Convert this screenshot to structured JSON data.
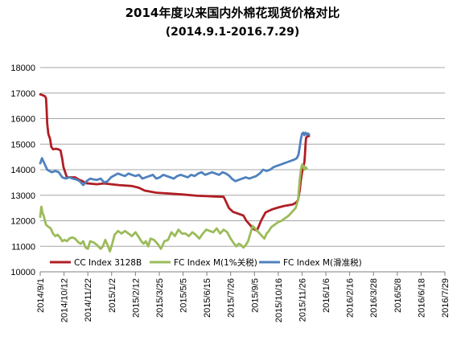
{
  "chart_data": {
    "type": "line",
    "title": "2014年度以来国内外棉花现货价格对比",
    "subtitle": "(2014.9.1-2016.7.29)",
    "xlabel": "",
    "ylabel": "",
    "ylim": [
      10000,
      18000
    ],
    "ytick_step": 1000,
    "ytick_labels": [
      "10000",
      "11000",
      "12000",
      "13000",
      "14000",
      "15000",
      "16000",
      "17000",
      "18000"
    ],
    "x_tick_labels": [
      "2014/9/1",
      "2014/10/12",
      "2014/11/22",
      "2015/1/2",
      "2015/2/12",
      "2015/3/25",
      "2015/5/5",
      "2015/6/15",
      "2015/7/26",
      "2015/9/5",
      "2015/10/16",
      "2015/11/26",
      "2016/1/6",
      "2016/2/16",
      "2016/3/28",
      "2016/5/8",
      "2016/6/18",
      "2016/7/29"
    ],
    "grid": "horizontal",
    "legend_position": "bottom",
    "series": [
      {
        "name": "CC Index 3128B",
        "color": "#B01E23",
        "points": [
          [
            0,
            16950
          ],
          [
            4,
            16920
          ],
          [
            8,
            16880
          ],
          [
            10,
            16800
          ],
          [
            11,
            16400
          ],
          [
            12,
            15800
          ],
          [
            14,
            15400
          ],
          [
            17,
            15200
          ],
          [
            19,
            14900
          ],
          [
            22,
            14800
          ],
          [
            27,
            14820
          ],
          [
            32,
            14790
          ],
          [
            35,
            14750
          ],
          [
            38,
            14420
          ],
          [
            40,
            14100
          ],
          [
            43,
            13900
          ],
          [
            46,
            13700
          ],
          [
            60,
            13700
          ],
          [
            66,
            13620
          ],
          [
            73,
            13550
          ],
          [
            79,
            13470
          ],
          [
            97,
            13430
          ],
          [
            110,
            13460
          ],
          [
            135,
            13400
          ],
          [
            158,
            13360
          ],
          [
            170,
            13290
          ],
          [
            180,
            13180
          ],
          [
            200,
            13100
          ],
          [
            225,
            13060
          ],
          [
            245,
            13030
          ],
          [
            270,
            12980
          ],
          [
            300,
            12950
          ],
          [
            316,
            12940
          ],
          [
            320,
            12750
          ],
          [
            325,
            12500
          ],
          [
            332,
            12350
          ],
          [
            342,
            12270
          ],
          [
            350,
            12200
          ],
          [
            355,
            12000
          ],
          [
            362,
            11820
          ],
          [
            367,
            11680
          ],
          [
            373,
            11620
          ],
          [
            376,
            11750
          ],
          [
            380,
            11980
          ],
          [
            384,
            12150
          ],
          [
            388,
            12320
          ],
          [
            395,
            12400
          ],
          [
            400,
            12450
          ],
          [
            410,
            12520
          ],
          [
            420,
            12580
          ],
          [
            428,
            12610
          ],
          [
            435,
            12640
          ],
          [
            440,
            12700
          ],
          [
            444,
            12800
          ],
          [
            447,
            13200
          ],
          [
            449,
            13600
          ],
          [
            451,
            13900
          ],
          [
            453,
            14100
          ],
          [
            455,
            14300
          ],
          [
            456,
            14600
          ],
          [
            457,
            15000
          ],
          [
            458,
            15250
          ],
          [
            460,
            15300
          ],
          [
            463,
            15320
          ]
        ]
      },
      {
        "name": "FC Index M(1%关税)",
        "color": "#9BBB59",
        "points": [
          [
            0,
            12150
          ],
          [
            2,
            12550
          ],
          [
            4,
            12300
          ],
          [
            6,
            12200
          ],
          [
            8,
            12000
          ],
          [
            10,
            11850
          ],
          [
            12,
            11800
          ],
          [
            15,
            11750
          ],
          [
            18,
            11700
          ],
          [
            22,
            11500
          ],
          [
            26,
            11400
          ],
          [
            30,
            11450
          ],
          [
            34,
            11350
          ],
          [
            38,
            11200
          ],
          [
            42,
            11250
          ],
          [
            46,
            11200
          ],
          [
            50,
            11300
          ],
          [
            55,
            11350
          ],
          [
            60,
            11300
          ],
          [
            66,
            11150
          ],
          [
            70,
            11100
          ],
          [
            74,
            11200
          ],
          [
            78,
            10950
          ],
          [
            82,
            10900
          ],
          [
            86,
            11200
          ],
          [
            92,
            11150
          ],
          [
            98,
            11050
          ],
          [
            104,
            10900
          ],
          [
            108,
            11000
          ],
          [
            112,
            11250
          ],
          [
            116,
            11050
          ],
          [
            120,
            10800
          ],
          [
            124,
            11100
          ],
          [
            128,
            11450
          ],
          [
            134,
            11600
          ],
          [
            140,
            11500
          ],
          [
            146,
            11600
          ],
          [
            152,
            11500
          ],
          [
            158,
            11400
          ],
          [
            164,
            11550
          ],
          [
            170,
            11350
          ],
          [
            174,
            11200
          ],
          [
            178,
            11100
          ],
          [
            182,
            11200
          ],
          [
            186,
            11000
          ],
          [
            190,
            11300
          ],
          [
            196,
            11250
          ],
          [
            202,
            11100
          ],
          [
            208,
            10900
          ],
          [
            214,
            11200
          ],
          [
            220,
            11250
          ],
          [
            226,
            11550
          ],
          [
            232,
            11400
          ],
          [
            238,
            11650
          ],
          [
            244,
            11500
          ],
          [
            250,
            11500
          ],
          [
            256,
            11400
          ],
          [
            262,
            11550
          ],
          [
            268,
            11450
          ],
          [
            274,
            11300
          ],
          [
            280,
            11500
          ],
          [
            286,
            11650
          ],
          [
            292,
            11600
          ],
          [
            298,
            11550
          ],
          [
            304,
            11700
          ],
          [
            310,
            11500
          ],
          [
            316,
            11650
          ],
          [
            322,
            11550
          ],
          [
            328,
            11300
          ],
          [
            334,
            11100
          ],
          [
            338,
            11000
          ],
          [
            342,
            11100
          ],
          [
            346,
            11050
          ],
          [
            350,
            10950
          ],
          [
            354,
            11050
          ],
          [
            358,
            11200
          ],
          [
            362,
            11500
          ],
          [
            366,
            11800
          ],
          [
            370,
            11700
          ],
          [
            374,
            11600
          ],
          [
            378,
            11500
          ],
          [
            382,
            11400
          ],
          [
            386,
            11300
          ],
          [
            390,
            11500
          ],
          [
            394,
            11600
          ],
          [
            398,
            11750
          ],
          [
            404,
            11850
          ],
          [
            410,
            11950
          ],
          [
            416,
            12000
          ],
          [
            422,
            12100
          ],
          [
            428,
            12200
          ],
          [
            434,
            12350
          ],
          [
            440,
            12500
          ],
          [
            444,
            12800
          ],
          [
            447,
            13600
          ],
          [
            449,
            14000
          ],
          [
            451,
            14200
          ],
          [
            453,
            14150
          ],
          [
            455,
            14000
          ],
          [
            457,
            14100
          ],
          [
            459,
            14050
          ]
        ]
      },
      {
        "name": "FC Index M(滑准税)",
        "color": "#4F81BD",
        "points": [
          [
            0,
            14250
          ],
          [
            3,
            14450
          ],
          [
            6,
            14300
          ],
          [
            9,
            14150
          ],
          [
            12,
            14000
          ],
          [
            16,
            13950
          ],
          [
            20,
            13900
          ],
          [
            26,
            13950
          ],
          [
            32,
            13900
          ],
          [
            38,
            13700
          ],
          [
            44,
            13650
          ],
          [
            50,
            13700
          ],
          [
            56,
            13650
          ],
          [
            62,
            13620
          ],
          [
            68,
            13550
          ],
          [
            74,
            13400
          ],
          [
            80,
            13550
          ],
          [
            86,
            13650
          ],
          [
            92,
            13620
          ],
          [
            98,
            13600
          ],
          [
            104,
            13650
          ],
          [
            110,
            13500
          ],
          [
            116,
            13550
          ],
          [
            122,
            13700
          ],
          [
            128,
            13780
          ],
          [
            134,
            13850
          ],
          [
            140,
            13800
          ],
          [
            146,
            13750
          ],
          [
            152,
            13850
          ],
          [
            158,
            13800
          ],
          [
            164,
            13750
          ],
          [
            170,
            13800
          ],
          [
            176,
            13650
          ],
          [
            182,
            13700
          ],
          [
            188,
            13750
          ],
          [
            194,
            13800
          ],
          [
            200,
            13650
          ],
          [
            206,
            13700
          ],
          [
            212,
            13800
          ],
          [
            218,
            13750
          ],
          [
            224,
            13700
          ],
          [
            230,
            13650
          ],
          [
            236,
            13750
          ],
          [
            242,
            13800
          ],
          [
            248,
            13750
          ],
          [
            254,
            13700
          ],
          [
            260,
            13800
          ],
          [
            266,
            13750
          ],
          [
            272,
            13850
          ],
          [
            278,
            13900
          ],
          [
            284,
            13800
          ],
          [
            290,
            13850
          ],
          [
            296,
            13900
          ],
          [
            302,
            13850
          ],
          [
            308,
            13800
          ],
          [
            314,
            13900
          ],
          [
            320,
            13850
          ],
          [
            326,
            13750
          ],
          [
            330,
            13650
          ],
          [
            336,
            13550
          ],
          [
            342,
            13600
          ],
          [
            348,
            13650
          ],
          [
            354,
            13700
          ],
          [
            360,
            13650
          ],
          [
            366,
            13700
          ],
          [
            372,
            13750
          ],
          [
            378,
            13850
          ],
          [
            384,
            14000
          ],
          [
            390,
            13950
          ],
          [
            396,
            14000
          ],
          [
            402,
            14100
          ],
          [
            408,
            14150
          ],
          [
            414,
            14200
          ],
          [
            420,
            14250
          ],
          [
            426,
            14300
          ],
          [
            432,
            14350
          ],
          [
            438,
            14400
          ],
          [
            442,
            14450
          ],
          [
            445,
            14600
          ],
          [
            447,
            14900
          ],
          [
            449,
            15200
          ],
          [
            451,
            15400
          ],
          [
            453,
            15450
          ],
          [
            455,
            15350
          ],
          [
            457,
            15450
          ],
          [
            459,
            15380
          ],
          [
            461,
            15420
          ],
          [
            463,
            15380
          ]
        ]
      }
    ]
  }
}
